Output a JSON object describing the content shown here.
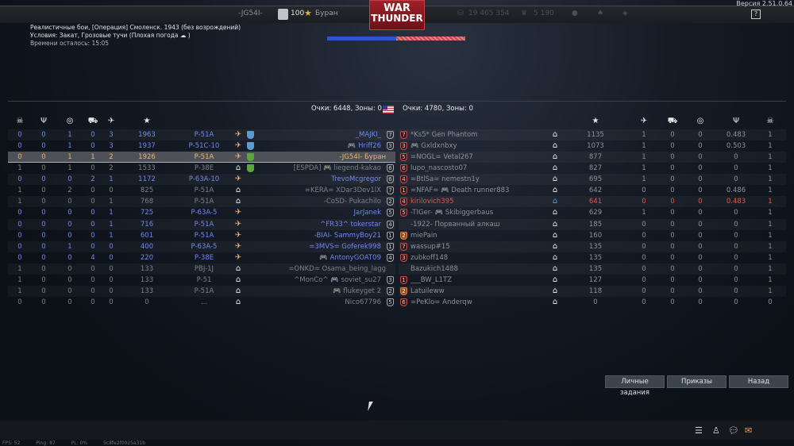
{
  "topbar": {
    "clan": "-JG54I-",
    "level": "100",
    "nickname": "Буран",
    "lions": "19 465 354",
    "eagles": "5 190",
    "version": "Версия 2.51.0.64",
    "help": "?"
  },
  "logo": {
    "line1": "WAR",
    "line2": "THUNDER"
  },
  "mission": {
    "title": "Реалистичные бои, [Операция] Смоленск. 1943 (без возрождений)",
    "conditions": "Условия: Закат, Грозовые тучи  (Плохая погода ☁ )",
    "time_left": "Времени осталось: 15:05"
  },
  "tickets": {
    "ally_fraction": 0.5,
    "enemy_fraction": 0.5
  },
  "scores": {
    "left": "Очки: 6448, Зоны: 0",
    "right": "Очки: 4780, Зоны: 0"
  },
  "header_icons": [
    "skull-icon",
    "assists-icon",
    "capture-icon",
    "ground-kills-icon",
    "air-kills-icon",
    "score-star-icon"
  ],
  "left_team": [
    {
      "c": [
        "0",
        "0",
        "1",
        "0",
        "3"
      ],
      "score": "1963",
      "vehicle": "P-51A",
      "name": "_MAJKI_",
      "rank": "7",
      "state": "plane",
      "badge": "#5a9ad0",
      "style": "blue"
    },
    {
      "c": [
        "0",
        "0",
        "1",
        "0",
        "3"
      ],
      "score": "1937",
      "vehicle": "P-51C-10",
      "name": "🎮 Hriff26",
      "rank": "3",
      "state": "plane",
      "badge": "#5a9ad0",
      "style": "blue"
    },
    {
      "c": [
        "0",
        "0",
        "1",
        "1",
        "2"
      ],
      "score": "1926",
      "vehicle": "P-51A",
      "name": "-JG54I- Буран",
      "rank": "",
      "state": "plane",
      "badge": "#58a838",
      "style": "gold"
    },
    {
      "c": [
        "1",
        "0",
        "1",
        "0",
        "2"
      ],
      "score": "1533",
      "vehicle": "P-38E",
      "name": "[ESPDA] 🎮 liegend-kakao",
      "rank": "6",
      "state": "para",
      "badge": "#58a838",
      "style": "grey"
    },
    {
      "c": [
        "0",
        "0",
        "0",
        "2",
        "1"
      ],
      "score": "1172",
      "vehicle": "P-63A-10",
      "name": "TrevoMcgregor",
      "rank": "6",
      "state": "plane",
      "badge": "",
      "style": "blue"
    },
    {
      "c": [
        "1",
        "0",
        "2",
        "0",
        "0"
      ],
      "score": "825",
      "vehicle": "P-51A",
      "name": "=KERA= XDar3Dev1lX",
      "rank": "7",
      "state": "para",
      "badge": "",
      "style": "grey"
    },
    {
      "c": [
        "1",
        "0",
        "0",
        "0",
        "1"
      ],
      "score": "768",
      "vehicle": "P-51A",
      "name": "-CoSD- Pukachilo",
      "rank": "2",
      "state": "para",
      "badge": "",
      "style": "grey"
    },
    {
      "c": [
        "0",
        "0",
        "0",
        "0",
        "1"
      ],
      "score": "725",
      "vehicle": "P-63A-5",
      "name": "JarJanek",
      "rank": "5",
      "state": "plane",
      "badge": "",
      "style": "blue"
    },
    {
      "c": [
        "0",
        "0",
        "0",
        "0",
        "1"
      ],
      "score": "716",
      "vehicle": "P-51A",
      "name": "^FR33^ tokerstar",
      "rank": "4",
      "state": "plane",
      "badge": "",
      "style": "blue"
    },
    {
      "c": [
        "0",
        "0",
        "0",
        "0",
        "1"
      ],
      "score": "601",
      "vehicle": "P-51A",
      "name": "-BIAI- SammyBoy21",
      "rank": "1",
      "state": "plane",
      "badge": "",
      "style": "blue"
    },
    {
      "c": [
        "0",
        "0",
        "1",
        "0",
        "0"
      ],
      "score": "400",
      "vehicle": "P-63A-5",
      "name": "=3MVS= Goferek998",
      "rank": "1",
      "state": "plane",
      "badge": "",
      "style": "blue"
    },
    {
      "c": [
        "0",
        "0",
        "0",
        "4",
        "0"
      ],
      "score": "220",
      "vehicle": "P-38E",
      "name": "🎮 AntonyGOAT09",
      "rank": "4",
      "state": "plane",
      "badge": "",
      "style": "blue"
    },
    {
      "c": [
        "1",
        "0",
        "0",
        "0",
        "0"
      ],
      "score": "133",
      "vehicle": "PBJ-1J",
      "name": "=ONKD= Osama_being_lagg",
      "rank": "",
      "state": "para",
      "badge": "",
      "style": "grey"
    },
    {
      "c": [
        "1",
        "0",
        "0",
        "0",
        "0"
      ],
      "score": "133",
      "vehicle": "P-51",
      "name": "^MonCo^ 🎮 soviet_su27",
      "rank": "3",
      "state": "para",
      "badge": "",
      "style": "grey"
    },
    {
      "c": [
        "1",
        "0",
        "0",
        "0",
        "0"
      ],
      "score": "133",
      "vehicle": "P-51A",
      "name": "🎮 flukeyget 2",
      "rank": "2",
      "state": "para",
      "badge": "",
      "style": "grey"
    },
    {
      "c": [
        "0",
        "0",
        "0",
        "0",
        "0"
      ],
      "score": "0",
      "vehicle": "...",
      "name": "Nico67796",
      "rank": "5",
      "state": "para",
      "badge": "",
      "style": "grey"
    }
  ],
  "right_team": [
    {
      "name": "*Ks5* Gen Phantom",
      "rank": "7",
      "rank_style": "r",
      "state": "para",
      "score": "1135",
      "c": [
        "1",
        "0",
        "0",
        "0.483",
        "1"
      ],
      "style": "rgrey"
    },
    {
      "name": "🎮 Gxldxnbxy",
      "rank": "3",
      "rank_style": "r",
      "state": "para",
      "score": "1073",
      "c": [
        "1",
        "0",
        "0",
        "0.503",
        "1"
      ],
      "style": "rgrey"
    },
    {
      "name": "=NOGL= Vetal267",
      "rank": "5",
      "rank_style": "r",
      "state": "para",
      "score": "877",
      "c": [
        "1",
        "0",
        "0",
        "0",
        "1"
      ],
      "style": "rgrey"
    },
    {
      "name": "lupo_nascosto07",
      "rank": "6",
      "rank_style": "r",
      "state": "para",
      "score": "827",
      "c": [
        "1",
        "0",
        "0",
        "0",
        "1"
      ],
      "style": "rgrey"
    },
    {
      "name": "=BtlSa= nemestn1y",
      "rank": "4",
      "rank_style": "r",
      "state": "para",
      "score": "695",
      "c": [
        "1",
        "0",
        "0",
        "0",
        "1"
      ],
      "style": "rgrey"
    },
    {
      "name": "=NFAF= 🎮 Death runner883",
      "rank": "1",
      "rank_style": "r",
      "state": "para",
      "score": "642",
      "c": [
        "0",
        "0",
        "0",
        "0.486",
        "1"
      ],
      "style": "rgrey"
    },
    {
      "name": "kirilovich395",
      "rank": "4",
      "rank_style": "r",
      "state": "para-blue",
      "score": "641",
      "c": [
        "0",
        "0",
        "0",
        "0.483",
        "1"
      ],
      "style": "red"
    },
    {
      "name": "-TIGer- 🎮 Skibiggerbaus",
      "rank": "5",
      "rank_style": "r",
      "state": "para",
      "score": "629",
      "c": [
        "1",
        "0",
        "0",
        "0",
        "1"
      ],
      "style": "rgrey"
    },
    {
      "name": "-1922- Порванный алкаш",
      "rank": "",
      "rank_style": "",
      "state": "para",
      "score": "185",
      "c": [
        "0",
        "0",
        "0",
        "0",
        "1"
      ],
      "style": "rgrey"
    },
    {
      "name": "miePain",
      "rank": "2",
      "rank_style": "o",
      "state": "para",
      "score": "160",
      "c": [
        "0",
        "0",
        "0",
        "0",
        "1"
      ],
      "style": "rgrey"
    },
    {
      "name": "wassup#15",
      "rank": "7",
      "rank_style": "r",
      "state": "para",
      "score": "135",
      "c": [
        "0",
        "0",
        "0",
        "0",
        "1"
      ],
      "style": "rgrey"
    },
    {
      "name": "zubkoff148",
      "rank": "3",
      "rank_style": "r",
      "state": "para",
      "score": "135",
      "c": [
        "0",
        "0",
        "0",
        "0",
        "1"
      ],
      "style": "rgrey"
    },
    {
      "name": "Bazukich1488",
      "rank": "",
      "rank_style": "",
      "state": "para",
      "score": "135",
      "c": [
        "0",
        "0",
        "0",
        "0",
        "1"
      ],
      "style": "rgrey"
    },
    {
      "name": "___BW_L1TZ",
      "rank": "1",
      "rank_style": "r",
      "state": "para",
      "score": "127",
      "c": [
        "0",
        "0",
        "0",
        "0",
        "1"
      ],
      "style": "rgrey"
    },
    {
      "name": "Latuileww",
      "rank": "2",
      "rank_style": "o",
      "state": "para",
      "score": "118",
      "c": [
        "0",
        "0",
        "0",
        "0",
        "1"
      ],
      "style": "rgrey"
    },
    {
      "name": "=PeKlo= Anderqw",
      "rank": "6",
      "rank_style": "r",
      "state": "para",
      "score": "0",
      "c": [
        "0",
        "0",
        "0",
        "0",
        "0"
      ],
      "style": "rgrey"
    }
  ],
  "buttons": {
    "personal_tasks": "Личные задания",
    "orders": "Приказы",
    "back": "Назад"
  },
  "bottom_icons": [
    "list-icon",
    "friends-icon",
    "chat-icon",
    "mail-icon"
  ],
  "status": {
    "fps": "FPS: 52",
    "ping": "Ping: 87",
    "pl": "PL: 0%",
    "id": "5c8fe2f0025a31b"
  }
}
